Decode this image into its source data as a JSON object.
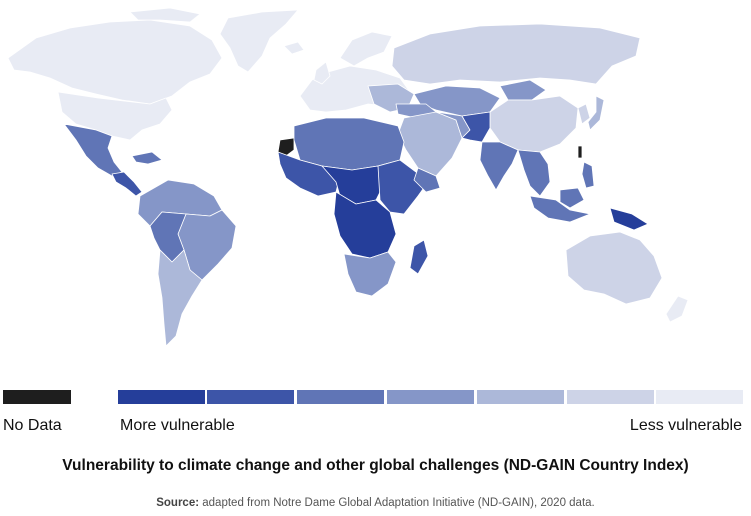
{
  "legend": {
    "no_data_label": "No Data",
    "more_label": "More vulnerable",
    "less_label": "Less vulnerable",
    "no_data_color": "#1e1e1e",
    "scale_colors": [
      "#253e9a",
      "#3d55a8",
      "#6075b6",
      "#8596c8",
      "#acb8d9",
      "#cdd3e7",
      "#e8ebf4"
    ]
  },
  "title": "Vulnerability to climate change and other global challenges (ND-GAIN Country Index)",
  "source": {
    "label": "Source:",
    "text": "adapted from Notre Dame Global Adaptation Initiative (ND-GAIN), 2020 data."
  }
}
